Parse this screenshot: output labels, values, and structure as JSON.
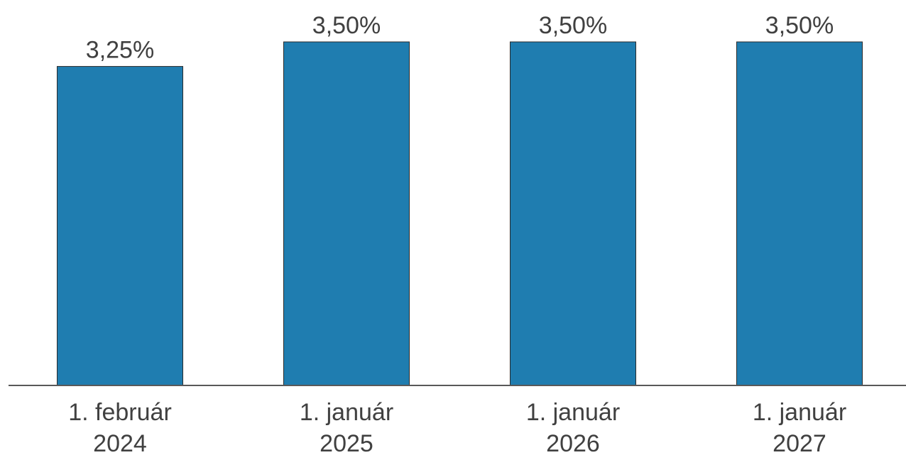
{
  "chart_data": {
    "type": "bar",
    "categories": [
      [
        "1. február",
        "2024"
      ],
      [
        "1. január",
        "2025"
      ],
      [
        "1. január",
        "2026"
      ],
      [
        "1. január",
        "2027"
      ]
    ],
    "values": [
      3.25,
      3.5,
      3.5,
      3.5
    ],
    "data_labels": [
      "3,25%",
      "3,50%",
      "3,50%",
      "3,50%"
    ],
    "title": "",
    "xlabel": "",
    "ylabel": "",
    "ylim": [
      0,
      3.5
    ],
    "grid": false,
    "legend": "none",
    "colors": {
      "bar": "#1f7db0",
      "text": "#404040",
      "axis": "#595959"
    }
  }
}
